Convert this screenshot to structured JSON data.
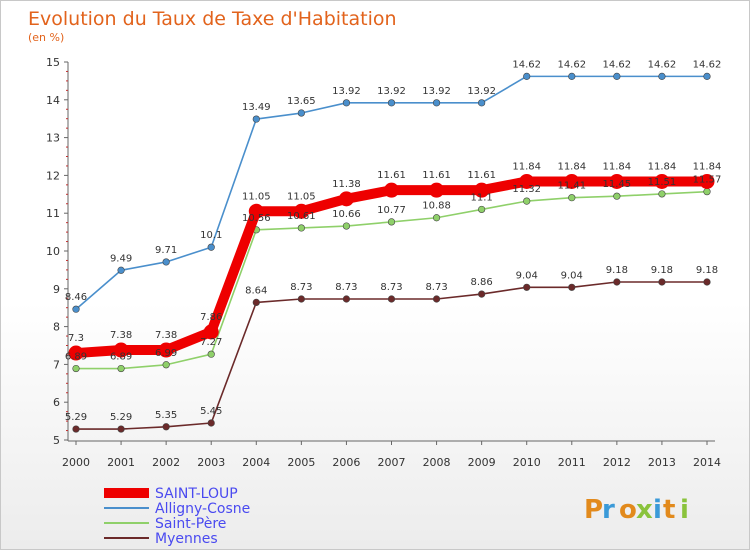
{
  "chart_data": {
    "type": "line",
    "title": "Evolution du Taux de Taxe d'Habitation",
    "subtitle": "(en %)",
    "x": [
      "2000",
      "2001",
      "2002",
      "2003",
      "2004",
      "2005",
      "2006",
      "2007",
      "2008",
      "2009",
      "2010",
      "2011",
      "2012",
      "2013",
      "2014"
    ],
    "ylim": [
      5,
      15
    ],
    "yticks": [
      5,
      6,
      7,
      8,
      9,
      10,
      11,
      12,
      13,
      14,
      15
    ],
    "grid": false,
    "legend_position": "bottom-left",
    "series": [
      {
        "name": "Alligny-Cosne",
        "color": "#4a8fcc",
        "values": [
          8.46,
          9.49,
          9.71,
          10.1,
          13.49,
          13.65,
          13.92,
          13.92,
          13.92,
          13.92,
          14.62,
          14.62,
          14.62,
          14.62,
          14.62
        ],
        "labels": [
          "8.46",
          "9.49",
          "9.71",
          "10.1",
          "13.49",
          "13.65",
          "13.92",
          "13.92",
          "13.92",
          "13.92",
          "14.62",
          "14.62",
          "14.62",
          "14.62",
          "14.62"
        ]
      },
      {
        "name": "Saint-Père",
        "color": "#8fd06a",
        "values": [
          6.89,
          6.89,
          6.99,
          7.27,
          10.56,
          10.61,
          10.66,
          10.77,
          10.88,
          11.1,
          11.32,
          11.41,
          11.45,
          11.51,
          11.57
        ],
        "labels": [
          "6.89",
          "6.89",
          "6.99",
          "7.27",
          "10.56",
          "10.61",
          "10.66",
          "10.77",
          "10.88",
          "11.1",
          "11.32",
          "11.41",
          "11.45",
          "11.51",
          "11.57"
        ]
      },
      {
        "name": "Myennes",
        "color": "#6b2a2a",
        "values": [
          5.29,
          5.29,
          5.35,
          5.45,
          8.64,
          8.73,
          8.73,
          8.73,
          8.73,
          8.86,
          9.04,
          9.04,
          9.18,
          9.18,
          9.18
        ],
        "labels": [
          "5.29",
          "5.29",
          "5.35",
          "5.45",
          "8.64",
          "8.73",
          "8.73",
          "8.73",
          "8.73",
          "8.86",
          "9.04",
          "9.04",
          "9.18",
          "9.18",
          "9.18"
        ]
      },
      {
        "name": "SAINT-LOUP",
        "color": "#ee0000",
        "values": [
          7.3,
          7.38,
          7.38,
          7.86,
          11.05,
          11.05,
          11.38,
          11.61,
          11.61,
          11.61,
          11.84,
          11.84,
          11.84,
          11.84,
          11.84
        ],
        "labels": [
          "7.3",
          "7.38",
          "7.38",
          "7.86",
          "11.05",
          "11.05",
          "11.38",
          "11.61",
          "11.61",
          "11.61",
          "11.84",
          "11.84",
          "11.84",
          "11.84",
          "11.84"
        ]
      }
    ]
  },
  "legend": [
    {
      "name": "SAINT-LOUP",
      "color": "#ee0000",
      "text_color": "#4a4af0"
    },
    {
      "name": "Alligny-Cosne",
      "color": "#4a8fcc",
      "text_color": "#4a4af0"
    },
    {
      "name": "Saint-Père",
      "color": "#8fd06a",
      "text_color": "#4a4af0"
    },
    {
      "name": "Myennes",
      "color": "#6b2a2a",
      "text_color": "#4a4af0"
    }
  ],
  "brand": {
    "name": "Proxiti"
  }
}
